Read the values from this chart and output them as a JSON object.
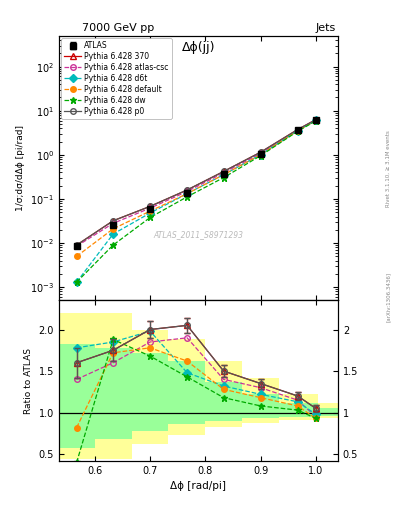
{
  "title_top": "7000 GeV pp",
  "title_right": "Jets",
  "plot_title": "Δϕ(jj)",
  "watermark": "ATLAS_2011_S8971293",
  "rivet_text": "Rivet 3.1.10, ≥ 3.1M events",
  "arxiv_text": "[arXiv:1306.3436]",
  "ylabel_main": "1/σ;dσ/dΔϕ [pi/rad]",
  "ylabel_ratio": "Ratio to ATLAS",
  "xlabel": "Δϕ [rad/pi]",
  "xlim": [
    0.535,
    1.04
  ],
  "ylim_main": [
    0.0005,
    500
  ],
  "ylim_ratio": [
    0.42,
    2.35
  ],
  "x_atlas": [
    0.567,
    0.633,
    0.7,
    0.767,
    0.833,
    0.9,
    0.967,
    1.0
  ],
  "y_atlas": [
    0.0085,
    0.026,
    0.058,
    0.135,
    0.37,
    1.05,
    3.6,
    6.1
  ],
  "atlas_yerr": [
    0.0008,
    0.002,
    0.005,
    0.012,
    0.03,
    0.08,
    0.3,
    0.5
  ],
  "x_pythia": [
    0.567,
    0.633,
    0.7,
    0.767,
    0.833,
    0.9,
    0.967,
    1.0
  ],
  "y_370": [
    0.009,
    0.032,
    0.068,
    0.16,
    0.42,
    1.15,
    3.75,
    6.3
  ],
  "y_atlas_csc": [
    0.0085,
    0.028,
    0.062,
    0.148,
    0.39,
    1.08,
    3.65,
    6.15
  ],
  "y_d6t": [
    0.0013,
    0.016,
    0.048,
    0.132,
    0.355,
    1.01,
    3.52,
    6.02
  ],
  "y_default": [
    0.005,
    0.021,
    0.053,
    0.132,
    0.355,
    1.01,
    3.52,
    6.02
  ],
  "y_dw": [
    0.0013,
    0.009,
    0.038,
    0.112,
    0.305,
    0.96,
    3.42,
    5.92
  ],
  "y_p0": [
    0.009,
    0.032,
    0.068,
    0.16,
    0.42,
    1.15,
    3.75,
    6.3
  ],
  "ratio_370": [
    1.6,
    1.75,
    2.0,
    2.05,
    1.5,
    1.35,
    1.2,
    1.05
  ],
  "ratio_atlas_csc": [
    1.4,
    1.6,
    1.85,
    1.9,
    1.4,
    1.3,
    1.15,
    0.95
  ],
  "ratio_d6t": [
    1.78,
    1.85,
    1.98,
    1.48,
    1.32,
    1.22,
    1.13,
    0.98
  ],
  "ratio_default": [
    0.82,
    1.72,
    1.78,
    1.62,
    1.28,
    1.18,
    1.08,
    0.93
  ],
  "ratio_dw": [
    0.4,
    1.88,
    1.68,
    1.43,
    1.18,
    1.08,
    1.03,
    0.93
  ],
  "ratio_p0": [
    1.6,
    1.75,
    2.0,
    2.05,
    1.5,
    1.35,
    1.2,
    1.05
  ],
  "ratio_370_err": [
    0.18,
    0.13,
    0.1,
    0.09,
    0.07,
    0.06,
    0.05,
    0.04
  ],
  "ratio_p0_err": [
    0.18,
    0.13,
    0.1,
    0.09,
    0.07,
    0.06,
    0.05,
    0.04
  ],
  "yellow_band_edges": [
    0.535,
    0.6,
    0.667,
    0.733,
    0.8,
    0.867,
    0.933,
    1.004
  ],
  "yellow_band_lo": [
    0.44,
    0.44,
    0.62,
    0.73,
    0.83,
    0.87,
    0.91,
    0.93
  ],
  "yellow_band_hi": [
    2.2,
    2.2,
    2.0,
    1.88,
    1.62,
    1.42,
    1.22,
    1.12
  ],
  "green_band_edges": [
    0.535,
    0.6,
    0.667,
    0.733,
    0.8,
    0.867,
    0.933,
    1.004
  ],
  "green_band_lo": [
    0.58,
    0.68,
    0.78,
    0.86,
    0.9,
    0.93,
    0.95,
    0.96
  ],
  "green_band_hi": [
    1.82,
    1.78,
    1.72,
    1.62,
    1.37,
    1.22,
    1.12,
    1.06
  ],
  "color_370": "#cc0000",
  "color_atlas_csc": "#cc3399",
  "color_d6t": "#00bbbb",
  "color_default": "#ff8800",
  "color_dw": "#00aa00",
  "color_p0": "#555555",
  "color_atlas": "#000000",
  "color_yellow": "#ffff99",
  "color_green": "#99ff99"
}
